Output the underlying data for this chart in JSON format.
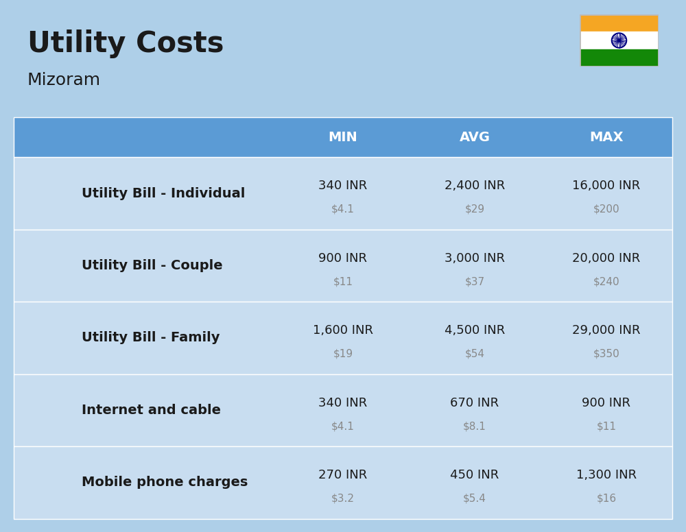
{
  "title": "Utility Costs",
  "subtitle": "Mizoram",
  "background_color": "#aecfe8",
  "header_bg_color": "#5b9bd5",
  "row_bg_color": "#c8ddf0",
  "header_text_color": "#ffffff",
  "main_text_color": "#1a1a1a",
  "sub_text_color": "#888888",
  "col_headers": [
    "MIN",
    "AVG",
    "MAX"
  ],
  "rows": [
    {
      "label": "Utility Bill - Individual",
      "icon": "utility",
      "min_inr": "340 INR",
      "min_usd": "$4.1",
      "avg_inr": "2,400 INR",
      "avg_usd": "$29",
      "max_inr": "16,000 INR",
      "max_usd": "$200"
    },
    {
      "label": "Utility Bill - Couple",
      "icon": "utility",
      "min_inr": "900 INR",
      "min_usd": "$11",
      "avg_inr": "3,000 INR",
      "avg_usd": "$37",
      "max_inr": "20,000 INR",
      "max_usd": "$240"
    },
    {
      "label": "Utility Bill - Family",
      "icon": "utility",
      "min_inr": "1,600 INR",
      "min_usd": "$19",
      "avg_inr": "4,500 INR",
      "avg_usd": "$54",
      "max_inr": "29,000 INR",
      "max_usd": "$350"
    },
    {
      "label": "Internet and cable",
      "icon": "internet",
      "min_inr": "340 INR",
      "min_usd": "$4.1",
      "avg_inr": "670 INR",
      "avg_usd": "$8.1",
      "max_inr": "900 INR",
      "max_usd": "$11"
    },
    {
      "label": "Mobile phone charges",
      "icon": "mobile",
      "min_inr": "270 INR",
      "min_usd": "$3.2",
      "avg_inr": "450 INR",
      "avg_usd": "$5.4",
      "max_inr": "1,300 INR",
      "max_usd": "$16"
    }
  ],
  "title_fontsize": 30,
  "subtitle_fontsize": 18,
  "header_fontsize": 14,
  "label_fontsize": 14,
  "value_fontsize": 13,
  "sub_value_fontsize": 11
}
